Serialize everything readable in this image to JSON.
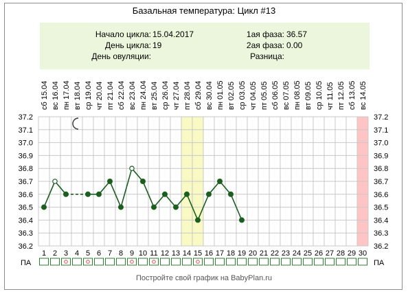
{
  "header": {
    "title": "Базальная температура: Цикл #13"
  },
  "info": {
    "cycle_start_label": "Начало цикла:",
    "cycle_start_value": "15.04.2017",
    "cycle_day_label": "День цикла:",
    "cycle_day_value": "19",
    "ovulation_day_label": "День овуляции:",
    "ovulation_day_value": "",
    "phase1_label": "1ая фаза:",
    "phase1_value": "36.57",
    "phase2_label": "2ая фаза:",
    "phase2_value": "0.00",
    "difference_label": "Разница:",
    "difference_value": ""
  },
  "footer": {
    "text": "Постройте свой график на BabyPlan.ru"
  },
  "chart_data": {
    "type": "line",
    "y_ticks": [
      "37.2",
      "37.1",
      "37.0",
      "36.9",
      "36.8",
      "36.7",
      "36.6",
      "36.5",
      "36.4",
      "36.3",
      "36.2"
    ],
    "ylim": [
      36.2,
      37.2
    ],
    "day_numbers": [
      "1",
      "2",
      "3",
      "4",
      "5",
      "6",
      "7",
      "8",
      "9",
      "10",
      "11",
      "12",
      "13",
      "14",
      "15",
      "16",
      "17",
      "18",
      "19",
      "20",
      "21",
      "22",
      "23",
      "24",
      "25",
      "26",
      "27",
      "28",
      "29",
      "30"
    ],
    "weekdays": [
      "сб",
      "вс",
      "пн",
      "вт",
      "ср",
      "чт",
      "пт",
      "сб",
      "вс",
      "пн",
      "вт",
      "ср",
      "чт",
      "пт",
      "сб",
      "вс",
      "пн",
      "вт",
      "ср",
      "чт",
      "пт",
      "сб",
      "вс",
      "пн",
      "вт",
      "ср",
      "чт",
      "пт",
      "сб",
      "вс"
    ],
    "dates": [
      "15.04",
      "16.04",
      "17.04",
      "18.04",
      "19.04",
      "20.04",
      "21.04",
      "22.04",
      "23.04",
      "24.04",
      "25.04",
      "26.04",
      "27.04",
      "28.04",
      "29.04",
      "30.04",
      "01.05",
      "02.05",
      "03.05",
      "04.05",
      "05.05",
      "06.05",
      "07.05",
      "08.05",
      "09.05",
      "10.05",
      "11.05",
      "12.05",
      "13.05",
      "14.05"
    ],
    "row_label": "ПА",
    "series": [
      {
        "x": [
          1,
          2,
          3,
          5,
          6,
          7,
          8,
          9,
          10,
          11,
          12,
          13,
          14,
          15,
          16,
          17,
          18,
          19
        ],
        "values": [
          36.5,
          36.7,
          36.6,
          36.6,
          36.6,
          36.7,
          36.5,
          36.8,
          36.7,
          36.5,
          36.6,
          36.5,
          36.6,
          36.4,
          36.6,
          36.7,
          36.6,
          36.4
        ],
        "hollow_days": [
          2,
          9
        ],
        "dashed_segments": [
          [
            3,
            5
          ]
        ],
        "color": "#1b5e20"
      }
    ],
    "highlight_days": [
      14,
      15
    ],
    "highlight_color": "#f9f9c4",
    "end_marker_day": 30,
    "end_marker_color": "#ffc4c4",
    "pa_marked_days": [
      3,
      5,
      9,
      11,
      15
    ],
    "moon_day": 4,
    "moon_icon": "crescent-moon-icon",
    "grid": true,
    "grid_color": "#c8c8c8",
    "pa_box_color": "#2e7d32",
    "pa_mark_color": "#d9534f"
  }
}
